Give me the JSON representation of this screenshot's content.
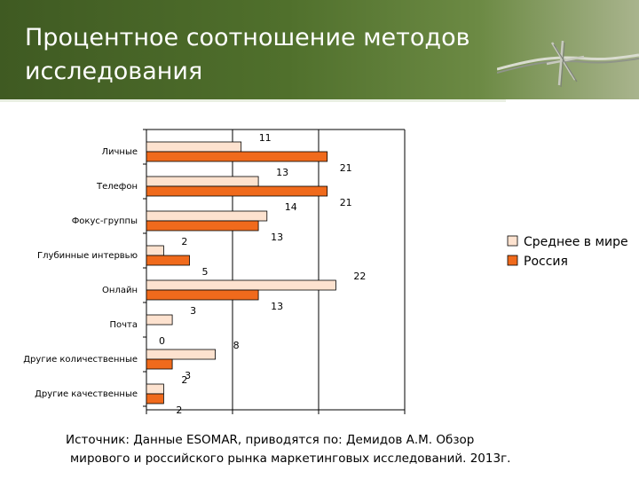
{
  "slide": {
    "title": "Процентное соотношение методов исследования",
    "source_line_1": "Источник: Данные ESOMAR, приводятся по: Демидов А.М. Обзор",
    "source_line_2": "мирового и российского рынка маркетинговых исследований. 2013г."
  },
  "chart_data": {
    "type": "bar",
    "orientation": "horizontal",
    "categories": [
      "Личные",
      "Телефон",
      "Фокус-группы",
      "Глубинные интервью",
      "Онлайн",
      "Почта",
      "Другие количественные",
      "Другие качественные"
    ],
    "series": [
      {
        "name": "Среднее в мире",
        "values": [
          11,
          13,
          14,
          2,
          22,
          3,
          8,
          2
        ],
        "color": "#fde2cf"
      },
      {
        "name": "Россия",
        "values": [
          21,
          21,
          13,
          5,
          13,
          0,
          3,
          2
        ],
        "color": "#f06a1c"
      }
    ],
    "value_labels": {
      "Среднее в мире": [
        "11",
        "13",
        "14",
        "2",
        "22",
        "3",
        "8",
        "2"
      ],
      "Россия": [
        "21",
        "21",
        "13",
        "5",
        "13",
        "0",
        "3",
        "2"
      ]
    },
    "xlim": [
      0,
      30
    ],
    "grid": "vertical",
    "legend_position": "right"
  }
}
